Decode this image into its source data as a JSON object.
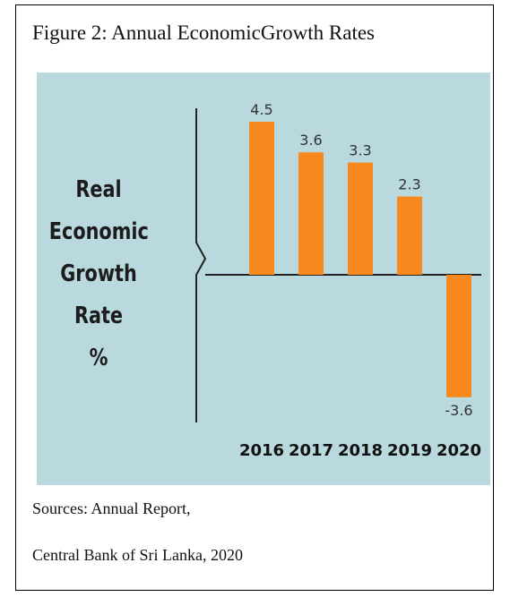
{
  "caption": "Figure 2: Annual EconomicGrowth Rates",
  "sources": {
    "line1": "Sources: Annual Report,",
    "line2": "Central Bank of Sri Lanka, 2020"
  },
  "colors": {
    "bar": "#f7891f",
    "background": "#b9d9df",
    "axis": "#222222"
  },
  "chart_data": {
    "type": "bar",
    "categories": [
      "2016",
      "2017",
      "2018",
      "2019",
      "2020"
    ],
    "values": [
      4.5,
      3.6,
      3.3,
      2.3,
      -3.6
    ],
    "value_labels": [
      "4.5",
      "3.6",
      "3.3",
      "2.3",
      "-3.6"
    ],
    "title": "",
    "ylabel_lines": [
      "Real",
      "Economic",
      "Growth",
      "Rate",
      "%"
    ],
    "xlabel": "",
    "grid": false,
    "legend": "none"
  }
}
